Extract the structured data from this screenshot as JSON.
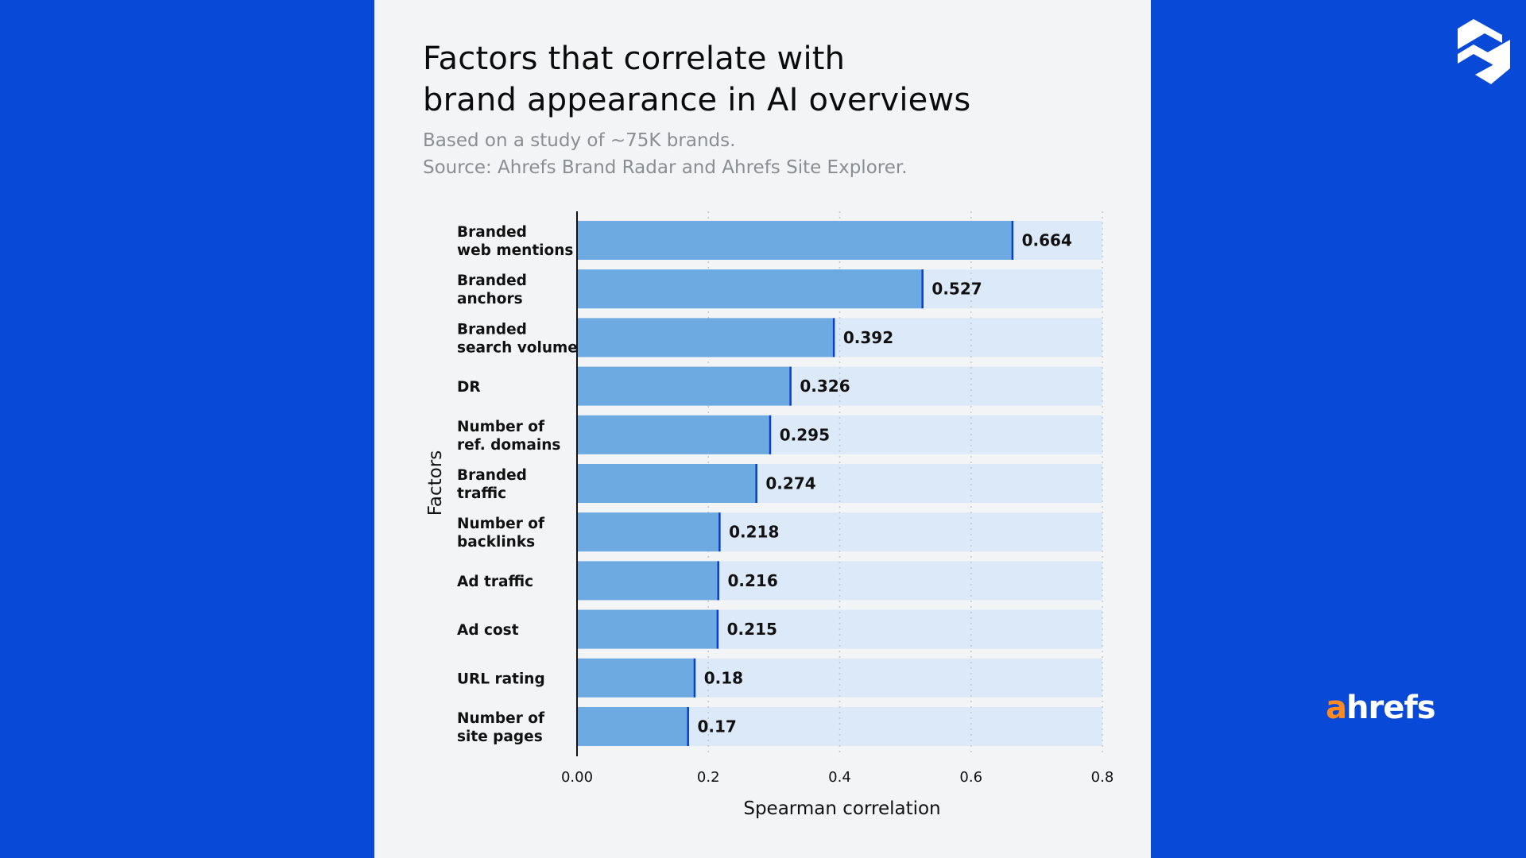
{
  "header": {
    "title_line1": "Factors that correlate with",
    "title_line2": "brand appearance in AI overviews",
    "subtitle_line1": "Based on a study of ~75K brands.",
    "subtitle_line2": "Source: Ahrefs Brand Radar and Ahrefs Site Explorer."
  },
  "brand": {
    "wordmark_accent": "a",
    "wordmark_rest": "hrefs",
    "logo_icon": "ahrefs-s-logo-icon"
  },
  "colors": {
    "background": "#0849d8",
    "bar": "#6daae2",
    "bar_track": "#dce9f8",
    "bar_edge": "#0a3fc9",
    "accent_orange": "#ff8a1e"
  },
  "chart_data": {
    "type": "bar",
    "orientation": "horizontal",
    "categories": [
      [
        "Branded",
        "web mentions"
      ],
      [
        "Branded",
        "anchors"
      ],
      [
        "Branded",
        "search volume"
      ],
      [
        "DR"
      ],
      [
        "Number of",
        "ref. domains"
      ],
      [
        "Branded",
        "traffic"
      ],
      [
        "Number of",
        "backlinks"
      ],
      [
        "Ad traffic"
      ],
      [
        "Ad cost"
      ],
      [
        "URL rating"
      ],
      [
        "Number of",
        "site pages"
      ]
    ],
    "values": [
      0.664,
      0.527,
      0.392,
      0.326,
      0.295,
      0.274,
      0.218,
      0.216,
      0.215,
      0.18,
      0.17
    ],
    "value_labels": [
      "0.664",
      "0.527",
      "0.392",
      "0.326",
      "0.295",
      "0.274",
      "0.218",
      "0.216",
      "0.215",
      "0.18",
      "0.17"
    ],
    "xlabel": "Spearman correlation",
    "ylabel": "Factors",
    "xlim": [
      0,
      0.8
    ],
    "xticks": [
      0,
      0.2,
      0.4,
      0.6,
      0.8
    ],
    "xtick_labels": [
      "0.00",
      "0.2",
      "0.4",
      "0.6",
      "0.8"
    ],
    "grid": "vertical dotted"
  }
}
